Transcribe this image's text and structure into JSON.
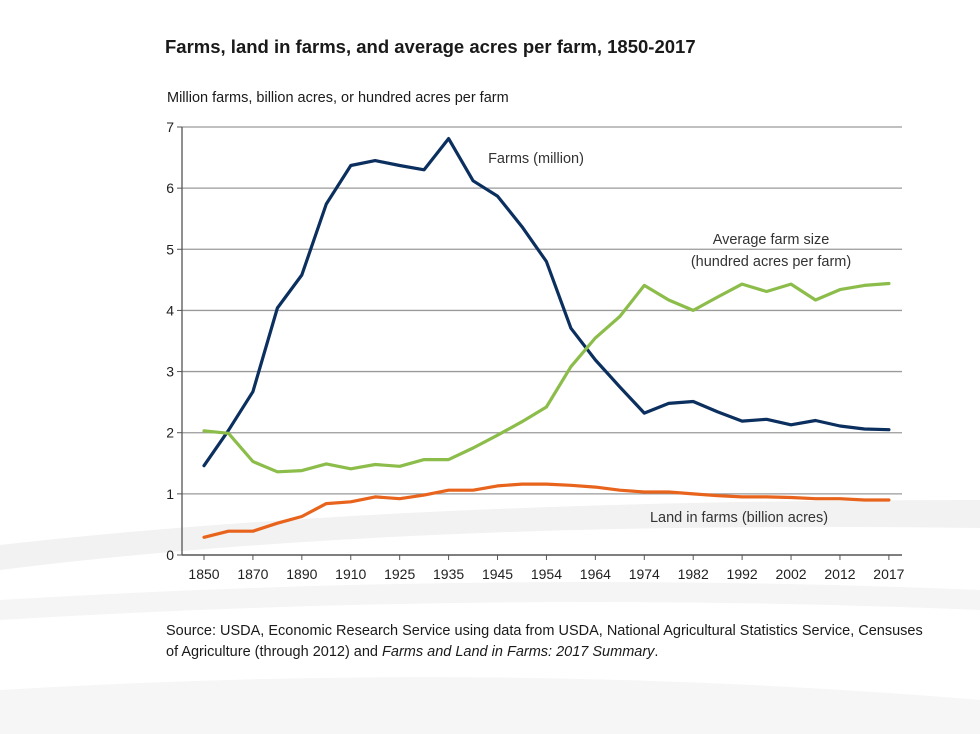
{
  "chart_data": {
    "type": "line",
    "title": "Farms, land in farms, and average acres per farm, 1850-2017",
    "ylabel": "Million farms, billion acres, or hundred acres per farm",
    "xlabel": "",
    "ylim": [
      0,
      7
    ],
    "yticks": [
      "0",
      "1",
      "2",
      "3",
      "4",
      "5",
      "6",
      "7"
    ],
    "grid": true,
    "categories": [
      1850,
      1860,
      1870,
      1880,
      1890,
      1900,
      1910,
      1920,
      1925,
      1930,
      1935,
      1940,
      1945,
      1950,
      1954,
      1959,
      1964,
      1969,
      1974,
      1978,
      1982,
      1987,
      1992,
      1997,
      2002,
      2007,
      2012,
      2015,
      2017
    ],
    "tick_labels": [
      "1850",
      "",
      "1870",
      "",
      "1890",
      "",
      "1910",
      "",
      "1925",
      "",
      "1935",
      "",
      "1945",
      "",
      "1954",
      "",
      "1964",
      "",
      "1974",
      "",
      "1982",
      "",
      "1992",
      "",
      "2002",
      "",
      "2012",
      "",
      "2017"
    ],
    "series": [
      {
        "name": "Farms (million)",
        "color": "#0b2f5e",
        "values": [
          1.46,
          2.04,
          2.67,
          4.04,
          4.58,
          5.74,
          6.37,
          6.45,
          6.37,
          6.3,
          6.81,
          6.12,
          5.87,
          5.37,
          4.8,
          3.71,
          3.19,
          2.75,
          2.32,
          2.48,
          2.51,
          2.34,
          2.19,
          2.22,
          2.13,
          2.2,
          2.11,
          2.06,
          2.05
        ]
      },
      {
        "name": "Average farm size (hundred acres per farm)",
        "name_line1": "Average farm size",
        "name_line2": "(hundred acres per farm)",
        "color": "#8cbd4a",
        "values": [
          2.03,
          1.99,
          1.53,
          1.36,
          1.38,
          1.49,
          1.41,
          1.48,
          1.45,
          1.56,
          1.56,
          1.75,
          1.96,
          2.18,
          2.42,
          3.08,
          3.55,
          3.9,
          4.41,
          4.17,
          4.0,
          4.22,
          4.43,
          4.31,
          4.43,
          4.17,
          4.34,
          4.41,
          4.44
        ]
      },
      {
        "name": "Land in farms (billion acres)",
        "color": "#e8631c",
        "values": [
          0.29,
          0.39,
          0.39,
          0.52,
          0.63,
          0.84,
          0.87,
          0.95,
          0.92,
          0.98,
          1.06,
          1.06,
          1.13,
          1.16,
          1.16,
          1.14,
          1.11,
          1.06,
          1.03,
          1.03,
          1.0,
          0.97,
          0.95,
          0.95,
          0.94,
          0.92,
          0.92,
          0.9,
          0.9
        ]
      }
    ],
    "legend": "inline labels"
  },
  "source": {
    "text1": "Source: USDA, Economic Research Service using data from USDA, National Agricultural Statistics Service, Censuses of Agriculture (through 2012) and ",
    "italic1": "Farms and Land in Farms: 2017 Summary",
    "text2": "."
  }
}
